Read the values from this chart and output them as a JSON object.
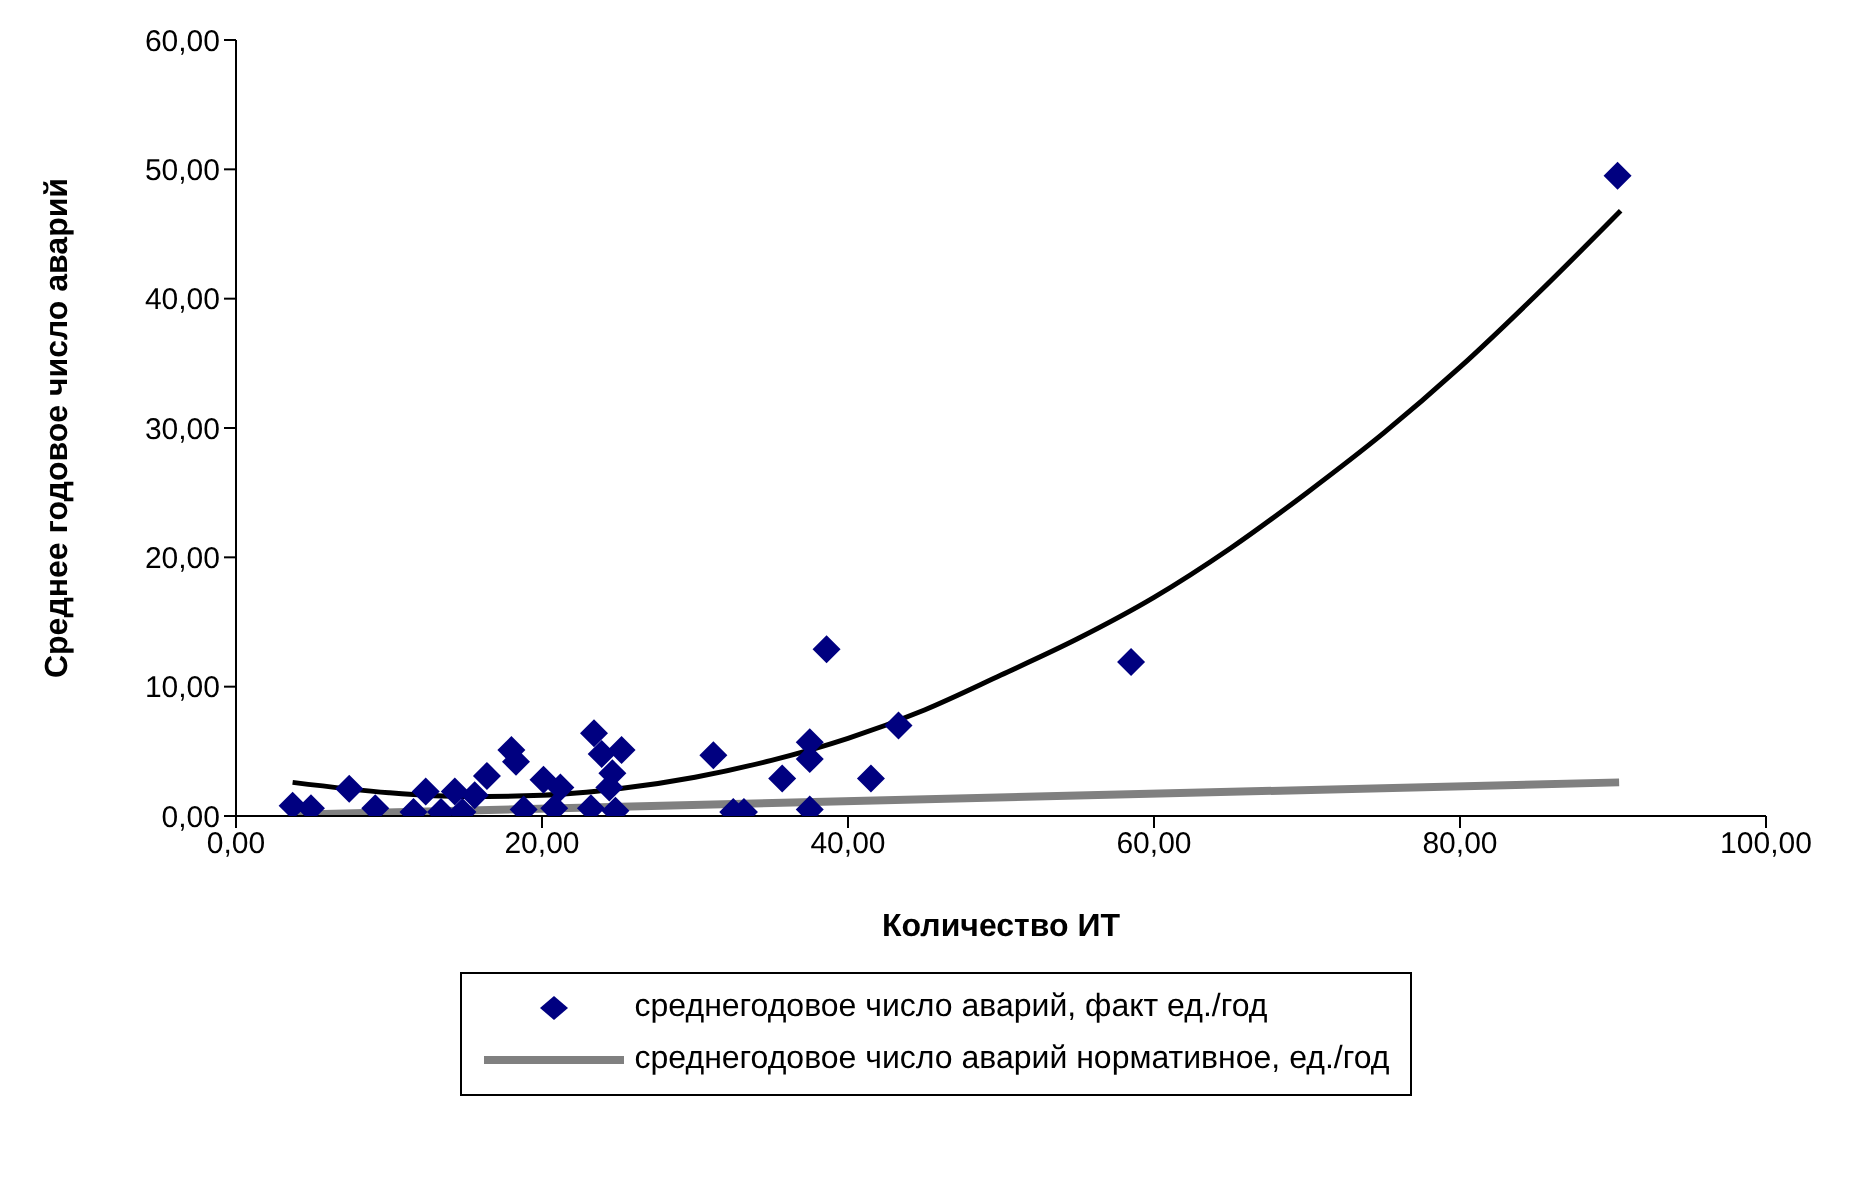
{
  "chart_data": {
    "type": "scatter",
    "xlabel": "Количество ИТ",
    "ylabel": "Среднее годовое число аварий",
    "xlim": [
      0,
      100
    ],
    "xticks": [
      {
        "value": 0,
        "label": "0,00"
      },
      {
        "value": 20,
        "label": "20,00"
      },
      {
        "value": 40,
        "label": "40,00"
      },
      {
        "value": 60,
        "label": "60,00"
      },
      {
        "value": 80,
        "label": "80,00"
      },
      {
        "value": 100,
        "label": "100,00"
      }
    ],
    "ylim": [
      0,
      60
    ],
    "yticks": [
      {
        "value": 0,
        "label": "0,00"
      },
      {
        "value": 10,
        "label": "10,00"
      },
      {
        "value": 20,
        "label": "20,00"
      },
      {
        "value": 30,
        "label": "30,00"
      },
      {
        "value": 40,
        "label": "40,00"
      },
      {
        "value": 50,
        "label": "50,00"
      },
      {
        "value": 60,
        "label": "60,00"
      }
    ],
    "grid": false,
    "legend": "bottom",
    "series": [
      {
        "name": "среднегодовое число аварий, факт ед./год",
        "color": "#000080",
        "marker": "diamond",
        "x": [
          3.7,
          4.9,
          7.4,
          9.1,
          11.6,
          12.4,
          13.4,
          14.3,
          14.8,
          15.6,
          16.4,
          18,
          18.3,
          18.8,
          20.1,
          20.8,
          21.2,
          23.4,
          23.2,
          23.9,
          25.2,
          24.6,
          24.4,
          24.8,
          31.2,
          32.5,
          33.2,
          35.7,
          37.5,
          37.5,
          37.5,
          38.6,
          41.5,
          43.3,
          58.5,
          90.3
        ],
        "values": [
          0.8,
          0.6,
          2.1,
          0.6,
          0.3,
          1.9,
          0.3,
          1.9,
          0.3,
          1.6,
          3.1,
          5.1,
          4.2,
          0.5,
          2.8,
          0.6,
          2.2,
          6.4,
          0.6,
          4.8,
          5.1,
          3.3,
          2.2,
          0.4,
          4.7,
          0.3,
          0.3,
          2.9,
          5.7,
          4.4,
          0.5,
          12.9,
          2.9,
          7,
          11.9,
          49.5
        ]
      },
      {
        "name": "среднегодовое число аварий нормативное, ед./год",
        "type": "line",
        "color": "#808080",
        "marker": "none",
        "line_style": "solid",
        "x": [
          3.7,
          90.4
        ],
        "values": [
          0.1,
          2.6
        ]
      },
      {
        "type": "line",
        "color": "#000000",
        "marker": "none",
        "line_style": "solid",
        "x": [
          3.7,
          10,
          15,
          20,
          25,
          30,
          35,
          40,
          45,
          50,
          55,
          60,
          65,
          70,
          75,
          80,
          85,
          90.5
        ],
        "values": [
          2.6,
          1.8,
          1.5,
          1.6,
          2.1,
          3,
          4.3,
          6,
          8.2,
          10.9,
          13.7,
          16.9,
          20.7,
          25,
          29.6,
          34.7,
          40.3,
          46.8
        ]
      }
    ]
  }
}
